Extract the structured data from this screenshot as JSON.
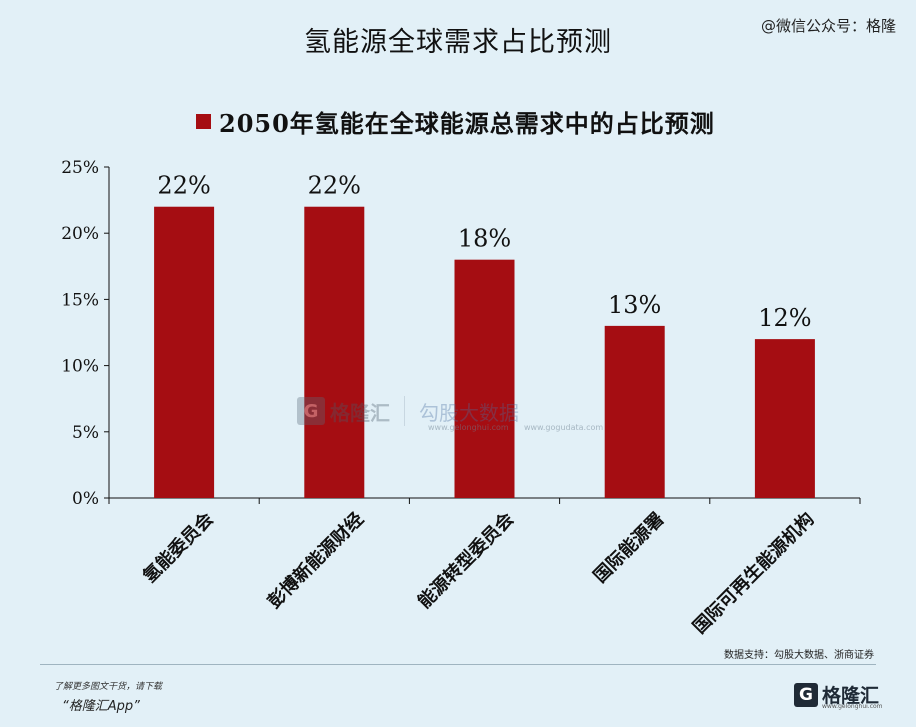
{
  "page": {
    "title": "氢能源全球需求占比预测",
    "source_tag": "@微信公众号：格隆"
  },
  "credit": "数据支持：勾股大数据、浙商证券",
  "watermark": {
    "brand_mark": "G",
    "brand": "格隆汇",
    "brand_url": "www.gelonghui.com",
    "partner": "勾股大数据",
    "partner_url": "www.gogudata.com"
  },
  "footer": {
    "line1": "了解更多图文干货，请下载",
    "line2": "“格隆汇App”",
    "logo_mark": "G",
    "logo_text": "格隆汇",
    "logo_url": "www.gelonghui.com"
  },
  "chart_data": {
    "type": "bar",
    "legend": "2050年氢能在全球能源总需求中的占比预测",
    "categories": [
      "氢能委员会",
      "彭博新能源财经",
      "能源转型委员会",
      "国际能源署",
      "国际可再生能源机构"
    ],
    "values": [
      22,
      22,
      18,
      13,
      12
    ],
    "value_labels": [
      "22%",
      "22%",
      "18%",
      "13%",
      "12%"
    ],
    "y_ticks": [
      0,
      5,
      10,
      15,
      20,
      25
    ],
    "y_tick_labels": [
      "0%",
      "5%",
      "10%",
      "15%",
      "20%",
      "25%"
    ],
    "ylim": [
      0,
      25
    ],
    "bar_color": "#a50d12",
    "grid": false,
    "legend_position": "top"
  }
}
